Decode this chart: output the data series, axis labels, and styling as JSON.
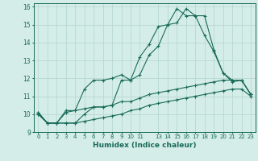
{
  "title": "",
  "xlabel": "Humidex (Indice chaleur)",
  "bg_color": "#d4ede8",
  "grid_color": "#b8d8d0",
  "line_color": "#1a6b5a",
  "xlim": [
    -0.5,
    23.5
  ],
  "ylim": [
    9,
    16.2
  ],
  "xtick_positions": [
    0,
    1,
    2,
    3,
    4,
    5,
    6,
    7,
    8,
    9,
    10,
    11,
    13,
    14,
    15,
    16,
    17,
    18,
    19,
    20,
    21,
    22,
    23
  ],
  "xtick_labels": [
    "0",
    "1",
    "2",
    "3",
    "4",
    "5",
    "6",
    "7",
    "8",
    "9",
    "10",
    "11",
    "13",
    "14",
    "15",
    "16",
    "17",
    "18",
    "19",
    "20",
    "21",
    "22",
    "23"
  ],
  "yticks": [
    9,
    10,
    11,
    12,
    13,
    14,
    15,
    16
  ],
  "series": [
    [
      10.1,
      9.5,
      9.5,
      10.2,
      10.2,
      11.4,
      11.9,
      11.9,
      12.0,
      12.2,
      11.9,
      13.2,
      13.9,
      14.9,
      15.0,
      15.9,
      15.5,
      15.5,
      14.4,
      13.5,
      12.3,
      11.9,
      11.9,
      11.1
    ],
    [
      10.1,
      9.5,
      9.5,
      10.1,
      10.2,
      10.3,
      10.4,
      10.4,
      10.5,
      11.9,
      11.9,
      12.2,
      13.3,
      13.8,
      15.0,
      15.1,
      15.9,
      15.5,
      15.5,
      13.6,
      12.3,
      11.8,
      11.9,
      11.1
    ],
    [
      10.0,
      9.5,
      9.5,
      9.5,
      9.5,
      10.0,
      10.4,
      10.4,
      10.5,
      10.7,
      10.7,
      10.9,
      11.1,
      11.2,
      11.3,
      11.4,
      11.5,
      11.6,
      11.7,
      11.8,
      11.9,
      11.9,
      11.9,
      11.1
    ],
    [
      10.0,
      9.5,
      9.5,
      9.5,
      9.5,
      9.6,
      9.7,
      9.8,
      9.9,
      10.0,
      10.2,
      10.3,
      10.5,
      10.6,
      10.7,
      10.8,
      10.9,
      11.0,
      11.1,
      11.2,
      11.3,
      11.4,
      11.4,
      11.0
    ]
  ],
  "marker_indices": [
    [
      0,
      1,
      2,
      3,
      4,
      5,
      6,
      7,
      8,
      9,
      10,
      11,
      12,
      13,
      14,
      15,
      16,
      17,
      18,
      19,
      20,
      21,
      22,
      23
    ],
    [
      0,
      1,
      2,
      3,
      4,
      5,
      6,
      7,
      8,
      9,
      10,
      11,
      12,
      13,
      14,
      15,
      16,
      17,
      18,
      19,
      20,
      21,
      22,
      23
    ],
    [
      0,
      3,
      5,
      6,
      7,
      8,
      9,
      10,
      11,
      13,
      14,
      15,
      16,
      17,
      18,
      19,
      20,
      21,
      22,
      23
    ],
    [
      0,
      3,
      5,
      6,
      8,
      10,
      12,
      14,
      16,
      18,
      20,
      22,
      23
    ]
  ]
}
